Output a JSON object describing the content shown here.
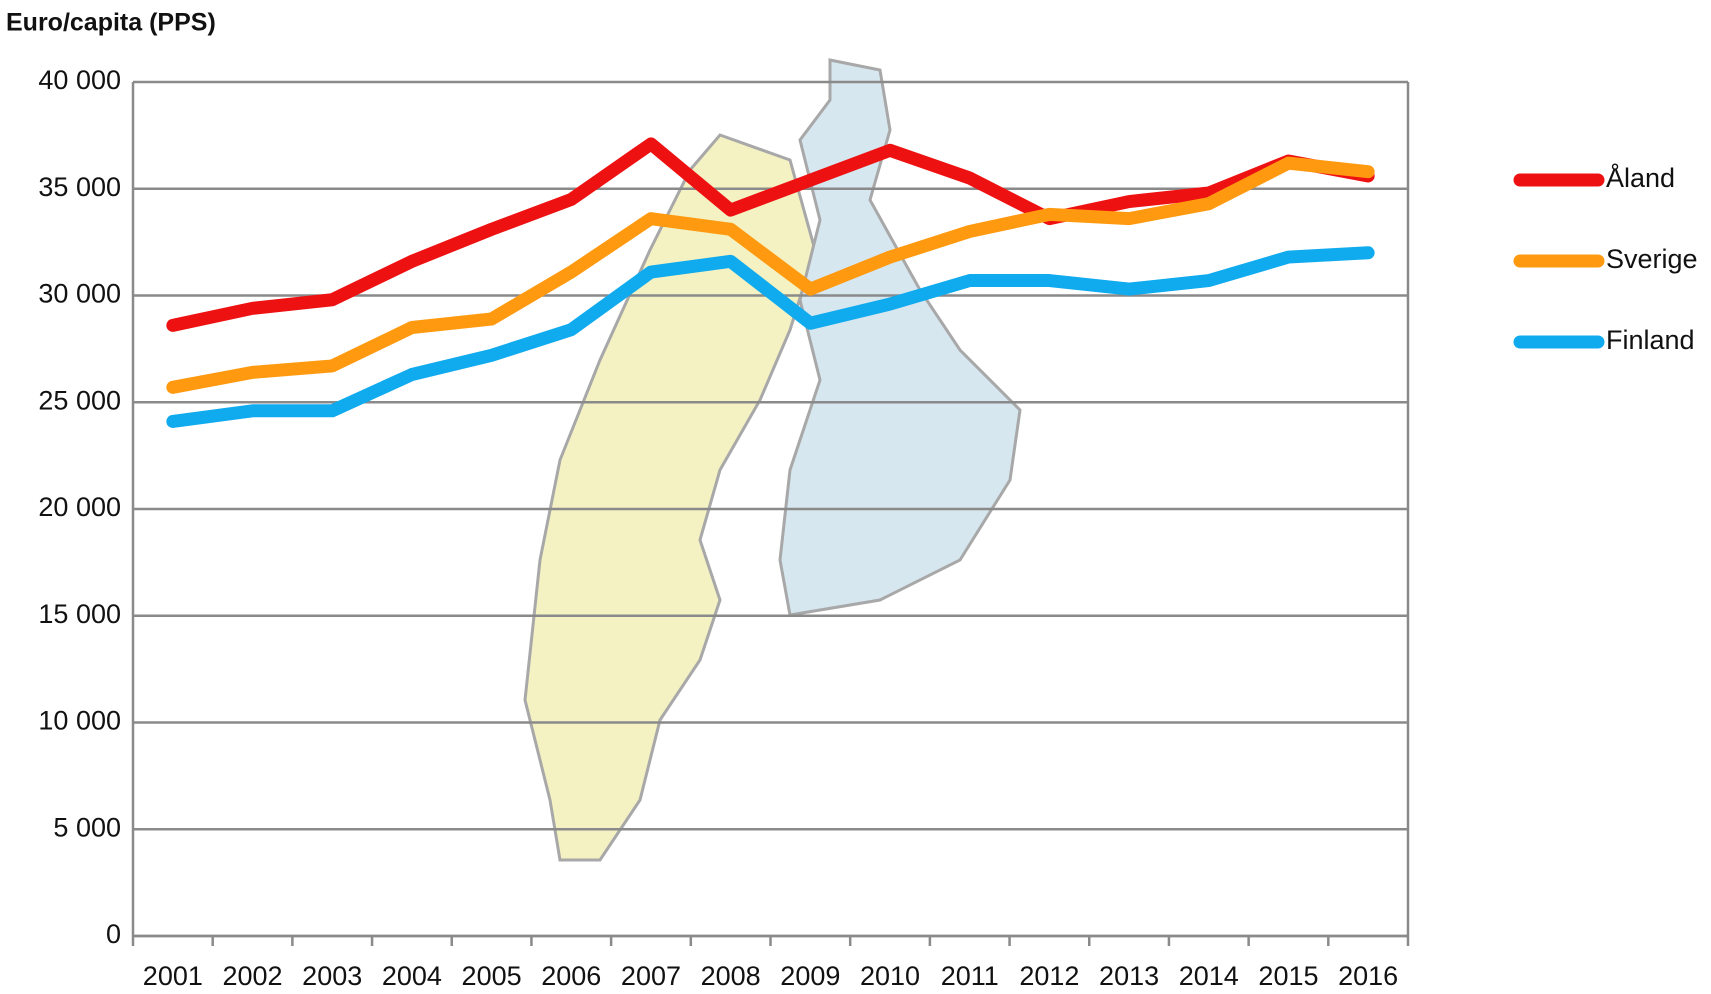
{
  "chart_data": {
    "type": "line",
    "y_label": "Euro/capita (PPS)",
    "categories": [
      "2001",
      "2002",
      "2003",
      "2004",
      "2005",
      "2006",
      "2007",
      "2008",
      "2009",
      "2010",
      "2011",
      "2012",
      "2013",
      "2014",
      "2015",
      "2016"
    ],
    "series": [
      {
        "name": "Åland",
        "color": "#ee1111",
        "values": [
          28600,
          29400,
          29800,
          31600,
          33100,
          34500,
          37100,
          34000,
          35400,
          36800,
          35500,
          33600,
          34400,
          34800,
          36300,
          35600
        ]
      },
      {
        "name": "Sverige",
        "color": "#ff9a10",
        "values": [
          25700,
          26400,
          26700,
          28500,
          28900,
          31100,
          33600,
          33100,
          30300,
          31800,
          33000,
          33800,
          33600,
          34300,
          36200,
          35800
        ]
      },
      {
        "name": "Finland",
        "color": "#10aaee",
        "values": [
          24100,
          24600,
          24600,
          26300,
          27200,
          28400,
          31100,
          31600,
          28700,
          29600,
          30700,
          30700,
          30300,
          30700,
          31800,
          32000
        ]
      }
    ],
    "ylim": [
      0,
      40000
    ],
    "yticks": [
      0,
      {
        "value": 5000,
        "label": "5 000"
      },
      {
        "value": 10000,
        "label": "10 000"
      },
      {
        "value": 15000,
        "label": "15 000"
      },
      {
        "value": 20000,
        "label": "20 000"
      },
      {
        "value": 25000,
        "label": "25 000"
      },
      {
        "value": 30000,
        "label": "30 000"
      },
      {
        "value": 35000,
        "label": "35 000"
      },
      {
        "value": 40000,
        "label": "40 000"
      }
    ],
    "grid": true,
    "legend": "right"
  }
}
